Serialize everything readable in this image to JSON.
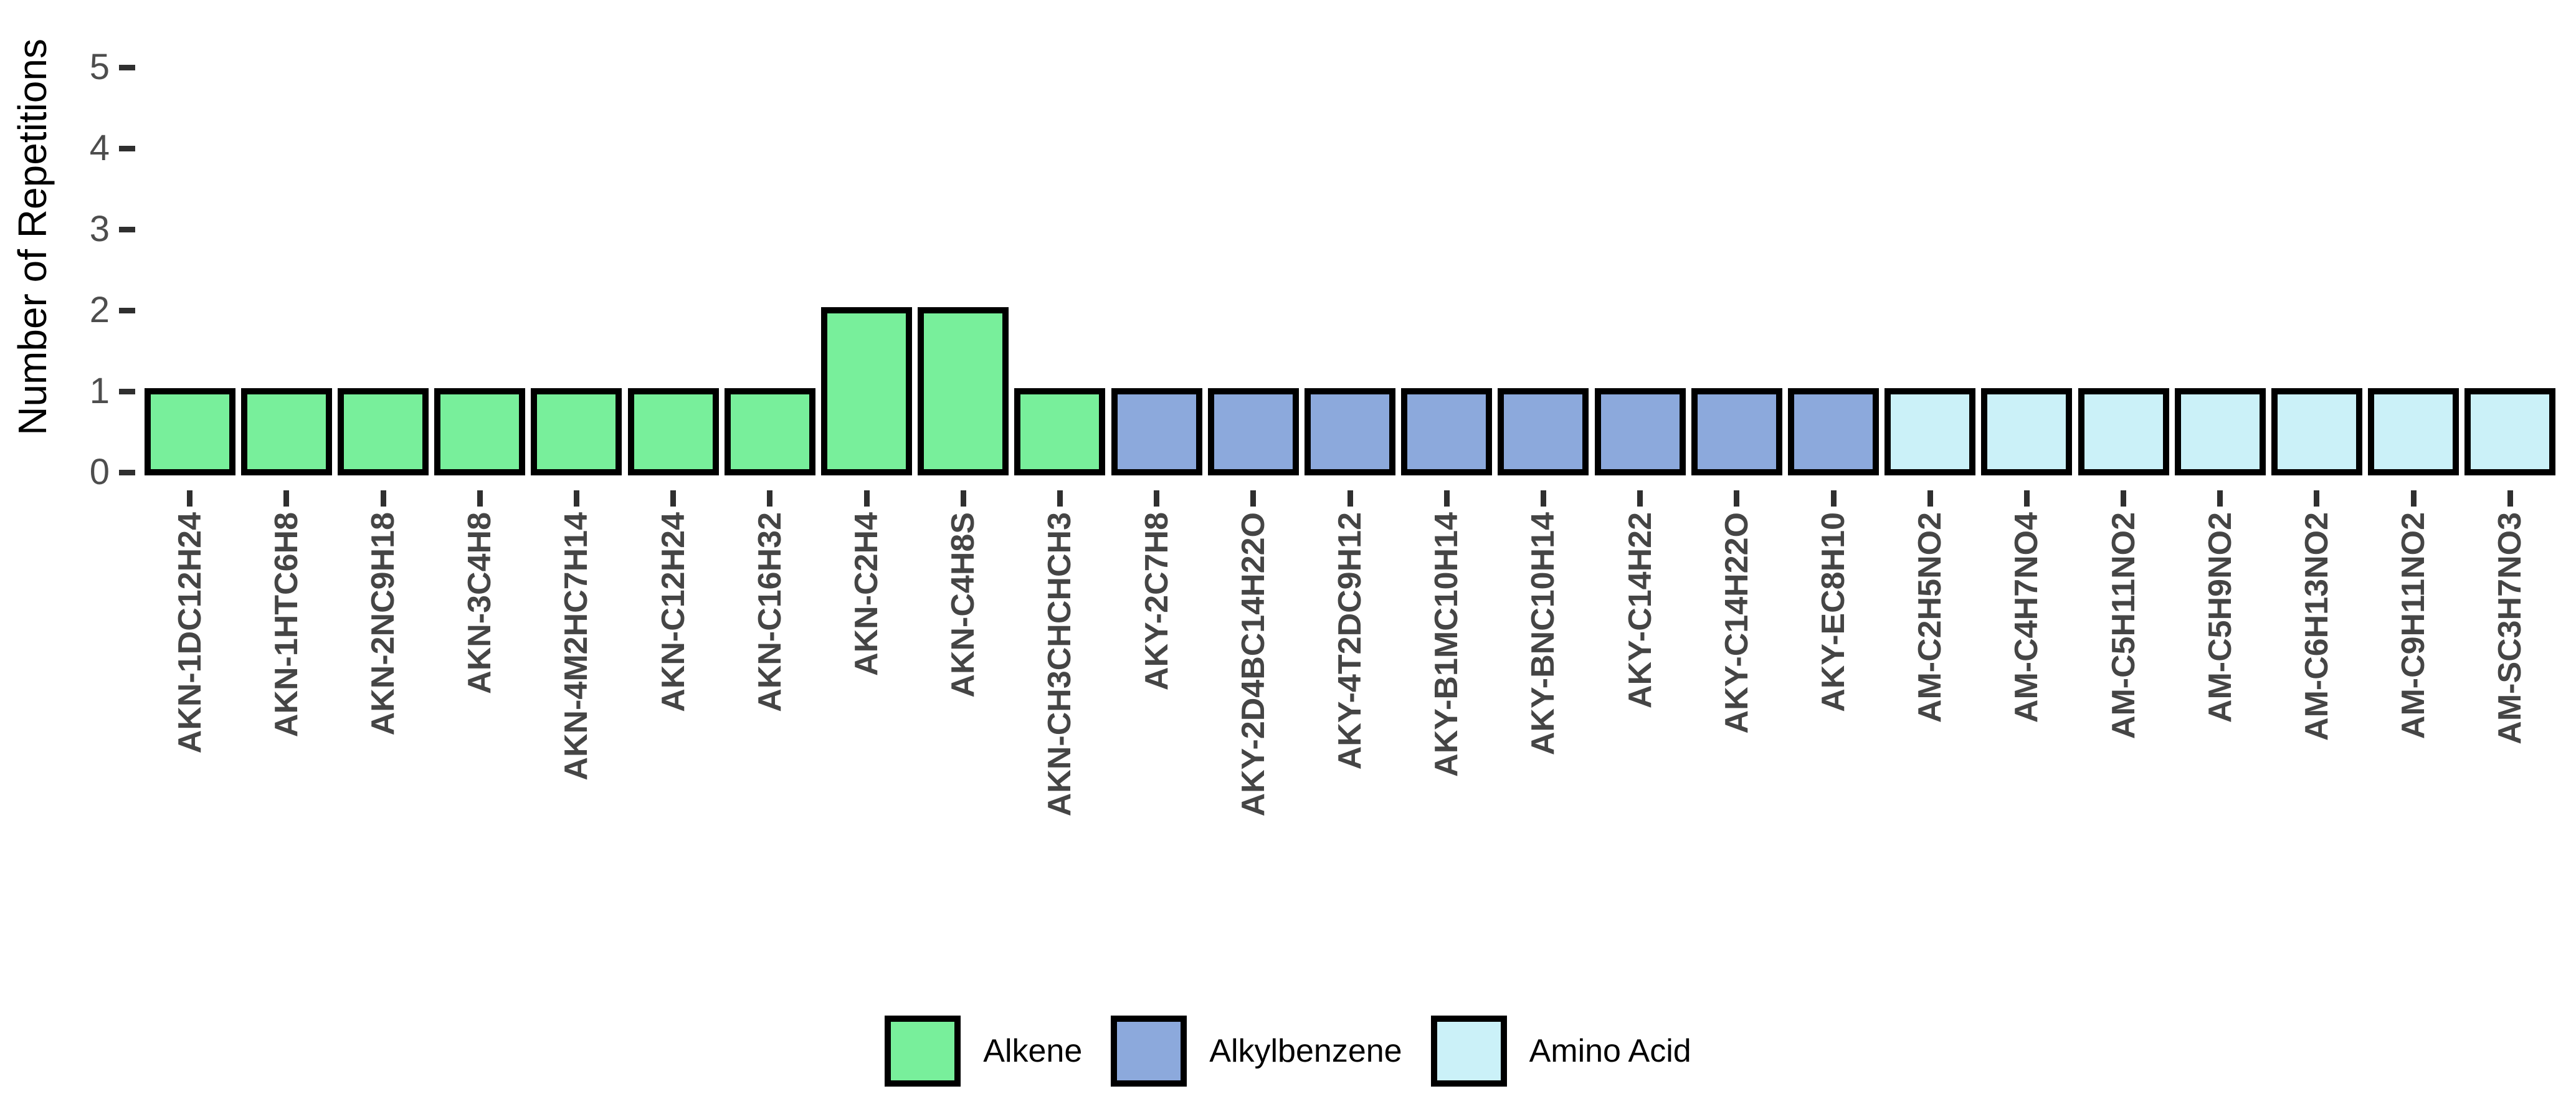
{
  "figure": {
    "y_axis_title": "Number of Repetitions"
  },
  "legend": {
    "items": [
      {
        "label": "Alkene",
        "color": "#78EF9B"
      },
      {
        "label": "Alkylbenzene",
        "color": "#8CA9DC"
      },
      {
        "label": "Amino Acid",
        "color": "#CBF1F8"
      }
    ]
  },
  "chart_data": {
    "type": "bar",
    "title": "",
    "xlabel": "",
    "ylabel": "Number of Repetitions",
    "ylim": [
      0,
      5
    ],
    "y_ticks": [
      0,
      1,
      2,
      3,
      4,
      5
    ],
    "grid": false,
    "legend_position": "bottom",
    "bar_outline_color": "#000000",
    "categories": [
      "AKN-1DC12H24",
      "AKN-1HTC6H8",
      "AKN-2NC9H18",
      "AKN-3C4H8",
      "AKN-4M2HC7H14",
      "AKN-C12H24",
      "AKN-C16H32",
      "AKN-C2H4",
      "AKN-C4H8S",
      "AKN-CH3CHCHCH3",
      "AKY-2C7H8",
      "AKY-2D4BC14H22O",
      "AKY-4T2DC9H12",
      "AKY-B1MC10H14",
      "AKY-BNC10H14",
      "AKY-C14H22",
      "AKY-C14H22O",
      "AKY-EC8H10",
      "AM-C2H5NO2",
      "AM-C4H7NO4",
      "AM-C5H11NO2",
      "AM-C5H9NO2",
      "AM-C6H13NO2",
      "AM-C9H11NO2",
      "AM-SC3H7NO3"
    ],
    "values": [
      1,
      1,
      1,
      1,
      1,
      1,
      1,
      2,
      2,
      1,
      1,
      1,
      1,
      1,
      1,
      1,
      1,
      1,
      1,
      1,
      1,
      1,
      1,
      1,
      1
    ],
    "groups": [
      "Alkene",
      "Alkene",
      "Alkene",
      "Alkene",
      "Alkene",
      "Alkene",
      "Alkene",
      "Alkene",
      "Alkene",
      "Alkene",
      "Alkylbenzene",
      "Alkylbenzene",
      "Alkylbenzene",
      "Alkylbenzene",
      "Alkylbenzene",
      "Alkylbenzene",
      "Alkylbenzene",
      "Alkylbenzene",
      "Amino Acid",
      "Amino Acid",
      "Amino Acid",
      "Amino Acid",
      "Amino Acid",
      "Amino Acid",
      "Amino Acid"
    ],
    "series_colors": {
      "Alkene": "#78EF9B",
      "Alkylbenzene": "#8CA9DC",
      "Amino Acid": "#CBF1F8"
    }
  }
}
